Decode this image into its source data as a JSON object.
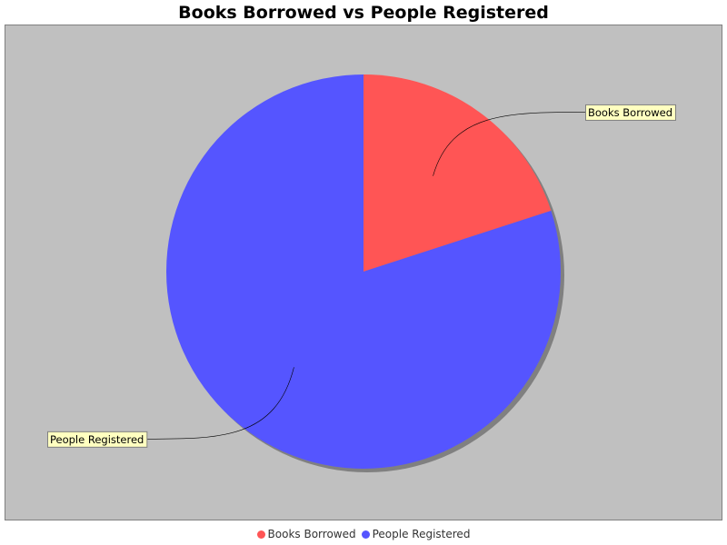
{
  "chart_data": {
    "type": "pie",
    "title": "Books Borrowed vs People Registered",
    "categories": [
      "Books Borrowed",
      "People Registered"
    ],
    "values": [
      20,
      80
    ],
    "colors": [
      "#ff5555",
      "#5555ff"
    ],
    "plot_background": "#c0c0c0",
    "label_background": "#ffffc0",
    "legend": "bottom"
  }
}
